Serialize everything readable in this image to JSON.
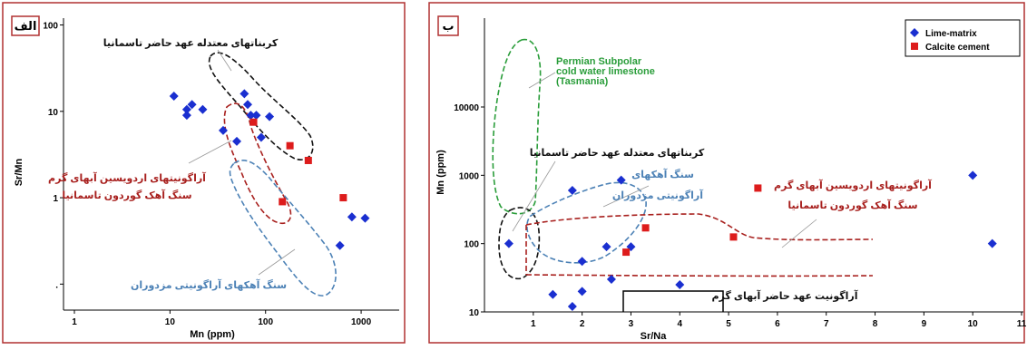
{
  "colors": {
    "frame": "#b03030",
    "lime_matrix": "#1a2fd0",
    "calcite_cement": "#dd1c1c",
    "tasmania_envelope": "#111111",
    "ordovician_envelope": "#a8201e",
    "mozduran_envelope": "#4d82b6",
    "permian_envelope": "#2a9d3a"
  },
  "chart_data": [
    {
      "type": "scatter",
      "panel_label": "الف",
      "xlabel": "Mn (ppm)",
      "ylabel": "Sr/Mn",
      "x_scale": "log",
      "y_scale": "log",
      "xlim": [
        1,
        2500
      ],
      "ylim": [
        0.05,
        120
      ],
      "x_ticks": [
        {
          "value": 1,
          "label": "1"
        },
        {
          "value": 10,
          "label": "10"
        },
        {
          "value": 100,
          "label": "100"
        },
        {
          "value": 1000,
          "label": "1000"
        }
      ],
      "y_ticks": [
        {
          "value": 0.1,
          "label": "."
        },
        {
          "value": 1,
          "label": "1"
        },
        {
          "value": 10,
          "label": "10"
        },
        {
          "value": 100,
          "label": "100"
        }
      ],
      "series": [
        {
          "marker": "diamond",
          "color": "#1a2fd0",
          "points": [
            [
              11,
              15
            ],
            [
              15,
              9
            ],
            [
              15,
              10.5
            ],
            [
              17,
              12
            ],
            [
              22,
              10.5
            ],
            [
              36,
              6
            ],
            [
              50,
              4.5
            ],
            [
              60,
              16
            ],
            [
              65,
              12
            ],
            [
              70,
              9
            ],
            [
              80,
              9
            ],
            [
              90,
              5
            ],
            [
              110,
              8.7
            ],
            [
              600,
              0.28
            ],
            [
              800,
              0.6
            ],
            [
              1100,
              0.58
            ]
          ]
        },
        {
          "marker": "square",
          "color": "#dd1c1c",
          "points": [
            [
              75,
              7.5
            ],
            [
              150,
              0.9
            ],
            [
              180,
              4
            ],
            [
              280,
              2.7
            ],
            [
              650,
              1
            ]
          ]
        }
      ],
      "annotations": [
        {
          "text": "کربناتهای معتدله عهد حاضر تاسمانیا",
          "color": "#111111"
        },
        {
          "text": "آراگونیتهای اردویسین آبهای گرم",
          "color": "#a8201e"
        },
        {
          "text": "سنگ آهک گوردون تاسمانیا",
          "color": "#a8201e"
        },
        {
          "text": "سنگ آهکهای آراگونیتی مزدوران",
          "color": "#4d82b6"
        }
      ]
    },
    {
      "type": "scatter",
      "panel_label": "ب",
      "xlabel": "Sr/Na",
      "ylabel": "Mn (ppm)",
      "x_scale": "linear",
      "y_scale": "log",
      "xlim": [
        0,
        11
      ],
      "ylim": [
        10,
        200000
      ],
      "x_ticks": [
        {
          "value": 1,
          "label": "1"
        },
        {
          "value": 2,
          "label": "2"
        },
        {
          "value": 3,
          "label": "3"
        },
        {
          "value": 4,
          "label": "4"
        },
        {
          "value": 5,
          "label": "5"
        },
        {
          "value": 6,
          "label": "6"
        },
        {
          "value": 7,
          "label": "7"
        },
        {
          "value": 8,
          "label": "8"
        },
        {
          "value": 9,
          "label": "9"
        },
        {
          "value": 10,
          "label": "10"
        },
        {
          "value": 11,
          "label": "11"
        }
      ],
      "y_ticks": [
        {
          "value": 10,
          "label": "10"
        },
        {
          "value": 100,
          "label": "100"
        },
        {
          "value": 1000,
          "label": "1000"
        },
        {
          "value": 10000,
          "label": "10000"
        }
      ],
      "series": [
        {
          "name": "Lime-matrix",
          "marker": "diamond",
          "color": "#1a2fd0",
          "points": [
            [
              0.5,
              100
            ],
            [
              1.4,
              18
            ],
            [
              1.8,
              600
            ],
            [
              1.8,
              12
            ],
            [
              2.0,
              55
            ],
            [
              2.0,
              20
            ],
            [
              2.5,
              90
            ],
            [
              2.6,
              30
            ],
            [
              2.8,
              850
            ],
            [
              3.0,
              90
            ],
            [
              4.0,
              25
            ],
            [
              10.0,
              1000
            ],
            [
              10.4,
              100
            ]
          ]
        },
        {
          "name": "Calcite cement",
          "marker": "square",
          "color": "#dd1c1c",
          "points": [
            [
              2.9,
              75
            ],
            [
              3.3,
              170
            ],
            [
              5.1,
              125
            ],
            [
              5.6,
              650
            ]
          ]
        }
      ],
      "annotations": [
        {
          "text": "Permian Subpolar",
          "color": "#2a9d3a"
        },
        {
          "text": "cold water limestone",
          "color": "#2a9d3a"
        },
        {
          "text": "(Tasmania)",
          "color": "#2a9d3a"
        },
        {
          "text": "کربناتهای معتدله عهد حاضر تاسمانیا",
          "color": "#111111"
        },
        {
          "text": "سنگ آهکهای",
          "color": "#4d82b6"
        },
        {
          "text": "آراگونیتی مزدوران",
          "color": "#4d82b6"
        },
        {
          "text": "آراگونیتهای اردویسین آبهای گرم",
          "color": "#a8201e"
        },
        {
          "text": "سنگ آهک گوردون تاسمانیا",
          "color": "#a8201e"
        },
        {
          "text": "آراگونیت عهد حاضر آبهای گرم",
          "color": "#111111"
        }
      ],
      "legend_placement": "top-right"
    }
  ]
}
